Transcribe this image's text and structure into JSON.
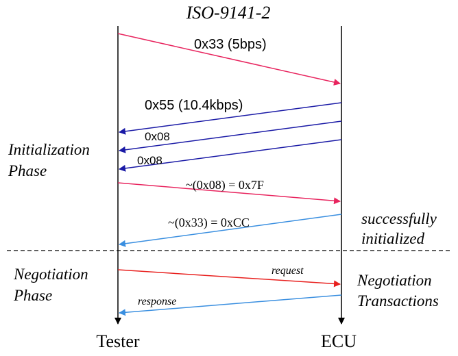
{
  "title": "ISO-9141-2",
  "lanes": {
    "tester": "Tester",
    "ecu": "ECU"
  },
  "phases": {
    "initialization": [
      "Initialization",
      "Phase"
    ],
    "negotiation": [
      "Negotiation",
      "Phase"
    ]
  },
  "notes": {
    "success": [
      "successfully",
      "initialized"
    ],
    "transactions": [
      "Negotiation",
      "Transactions"
    ]
  },
  "messages": [
    {
      "label": "0x33 (5bps)",
      "direction": "tester-to-ecu",
      "color": "#e8245e"
    },
    {
      "label": "0x55 (10.4kbps)",
      "direction": "ecu-to-tester",
      "color": "#1a1aa6"
    },
    {
      "label": "0x08",
      "direction": "ecu-to-tester",
      "color": "#1a1aa6"
    },
    {
      "label": "0x08",
      "direction": "ecu-to-tester",
      "color": "#1a1aa6"
    },
    {
      "label": "~(0x08) = 0x7F",
      "direction": "tester-to-ecu",
      "color": "#e8245e"
    },
    {
      "label": "~(0x33) = 0xCC",
      "direction": "ecu-to-tester",
      "color": "#3a8fe0"
    },
    {
      "label": "request",
      "direction": "tester-to-ecu",
      "color": "#e8201e"
    },
    {
      "label": "response",
      "direction": "ecu-to-tester",
      "color": "#3a8fe0"
    }
  ]
}
